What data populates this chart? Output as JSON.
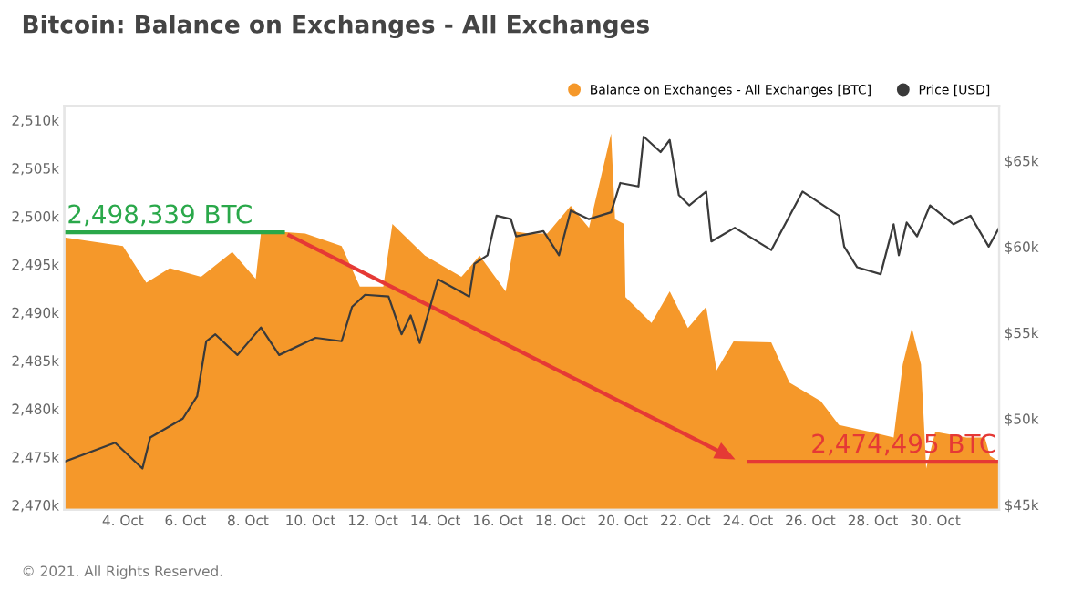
{
  "chart_data": {
    "type": "area",
    "title": "Bitcoin: Balance on Exchanges - All Exchanges",
    "legend": "top right",
    "series": [
      {
        "name": "Balance on Exchanges - All Exchanges [BTC]",
        "color": "#f5982a",
        "x": [
          "2021-10-02T03:00",
          "2021-10-04T00:00",
          "2021-10-04T18:00",
          "2021-10-05T12:00",
          "2021-10-06T12:00",
          "2021-10-07T12:00",
          "2021-10-08T06:00",
          "2021-10-08T10:00",
          "2021-10-09T00:00",
          "2021-10-09T20:00",
          "2021-10-11T00:00",
          "2021-10-11T14:00",
          "2021-10-12T08:00",
          "2021-10-12T15:00",
          "2021-10-13T16:00",
          "2021-10-14T20:00",
          "2021-10-15T10:00",
          "2021-10-16T06:00",
          "2021-10-16T14:00",
          "2021-10-17T00:00",
          "2021-10-17T14:00",
          "2021-10-18T08:00",
          "2021-10-18T22:00",
          "2021-10-19T15:00",
          "2021-10-19T18:00",
          "2021-10-20T01:00",
          "2021-10-20T02:00",
          "2021-10-20T22:00",
          "2021-10-21T12:00",
          "2021-10-22T02:00",
          "2021-10-22T16:00",
          "2021-10-23T00:00",
          "2021-10-23T13:00",
          "2021-10-24T18:00",
          "2021-10-25T08:00",
          "2021-10-26T08:00",
          "2021-10-26T22:00",
          "2021-10-27T22:00",
          "2021-10-28T16:00",
          "2021-10-28T23:00",
          "2021-10-29T06:00",
          "2021-10-29T13:00",
          "2021-10-29T17:00",
          "2021-10-30T00:00",
          "2021-10-31T00:00",
          "2021-10-31T14:00",
          "2021-10-31T18:00",
          "2021-11-01T01:00"
        ],
        "values": [
          2497.8,
          2496.9,
          2493.1,
          2494.6,
          2493.7,
          2496.3,
          2493.5,
          2498.2,
          2498.4,
          2498.2,
          2496.9,
          2492.7,
          2492.7,
          2499.2,
          2495.9,
          2493.7,
          2495.9,
          2492.2,
          2498.4,
          2498.2,
          2498.2,
          2501.1,
          2498.8,
          2508.6,
          2499.7,
          2499.2,
          2491.6,
          2488.9,
          2492.2,
          2488.4,
          2490.6,
          2484.0,
          2487.0,
          2486.9,
          2482.7,
          2480.8,
          2478.3,
          2477.6,
          2477.0,
          2484.6,
          2488.4,
          2484.6,
          2473.8,
          2477.6,
          2477.0,
          2477.0,
          2475.1,
          2474.5
        ]
      },
      {
        "name": "Price [USD]",
        "type": "line",
        "axis": "y2",
        "color": "#3a3a3a",
        "x": [
          "2021-10-02T03:00",
          "2021-10-03T18:00",
          "2021-10-04T15:00",
          "2021-10-04T21:00",
          "2021-10-05T22:00",
          "2021-10-06T09:00",
          "2021-10-06T16:00",
          "2021-10-06T23:00",
          "2021-10-07T16:00",
          "2021-10-08T10:00",
          "2021-10-09T00:00",
          "2021-10-10T04:00",
          "2021-10-11T00:00",
          "2021-10-11T08:00",
          "2021-10-11T18:00",
          "2021-10-12T12:00",
          "2021-10-12T22:00",
          "2021-10-13T05:00",
          "2021-10-13T12:00",
          "2021-10-14T02:00",
          "2021-10-15T02:00",
          "2021-10-15T06:00",
          "2021-10-15T16:00",
          "2021-10-15T23:00",
          "2021-10-16T10:00",
          "2021-10-16T14:00",
          "2021-10-17T11:00",
          "2021-10-17T23:00",
          "2021-10-18T08:00",
          "2021-10-18T22:00",
          "2021-10-19T15:00",
          "2021-10-19T22:00",
          "2021-10-20T12:00",
          "2021-10-20T16:00",
          "2021-10-21T05:00",
          "2021-10-21T12:00",
          "2021-10-21T19:00",
          "2021-10-22T03:00",
          "2021-10-22T16:00",
          "2021-10-22T20:00",
          "2021-10-23T14:00",
          "2021-10-24T18:00",
          "2021-10-25T18:00",
          "2021-10-26T22:00",
          "2021-10-27T02:00",
          "2021-10-27T12:00",
          "2021-10-28T06:00",
          "2021-10-28T16:00",
          "2021-10-28T20:00",
          "2021-10-29T02:00",
          "2021-10-29T10:00",
          "2021-10-29T20:00",
          "2021-10-30T14:00",
          "2021-10-31T03:00",
          "2021-10-31T17:00",
          "2021-11-01T01:00"
        ],
        "values": [
          47.5,
          48.6,
          47.1,
          48.9,
          50.0,
          51.3,
          54.5,
          54.9,
          53.7,
          55.3,
          53.7,
          54.7,
          54.5,
          56.5,
          57.2,
          57.1,
          54.9,
          56.0,
          54.4,
          58.1,
          57.1,
          59.0,
          59.5,
          61.8,
          61.6,
          60.6,
          60.9,
          59.5,
          62.1,
          61.6,
          62.0,
          63.7,
          63.5,
          66.4,
          65.5,
          66.2,
          63.0,
          62.4,
          63.2,
          60.3,
          61.1,
          59.8,
          63.2,
          61.8,
          60.0,
          58.8,
          58.4,
          61.3,
          59.5,
          61.4,
          60.6,
          62.4,
          61.3,
          61.8,
          60.0,
          61.1
        ]
      }
    ],
    "xlim": [
      "2021-10-02T03:00",
      "2021-11-01T01:00"
    ],
    "xticks": [
      {
        "value": "2021-10-04",
        "label": "4. Oct"
      },
      {
        "value": "2021-10-06",
        "label": "6. Oct"
      },
      {
        "value": "2021-10-08",
        "label": "8. Oct"
      },
      {
        "value": "2021-10-10",
        "label": "10. Oct"
      },
      {
        "value": "2021-10-12",
        "label": "12. Oct"
      },
      {
        "value": "2021-10-14",
        "label": "14. Oct"
      },
      {
        "value": "2021-10-16",
        "label": "16. Oct"
      },
      {
        "value": "2021-10-18",
        "label": "18. Oct"
      },
      {
        "value": "2021-10-20",
        "label": "20. Oct"
      },
      {
        "value": "2021-10-22",
        "label": "22. Oct"
      },
      {
        "value": "2021-10-24",
        "label": "24. Oct"
      },
      {
        "value": "2021-10-26",
        "label": "26. Oct"
      },
      {
        "value": "2021-10-28",
        "label": "28. Oct"
      },
      {
        "value": "2021-10-30",
        "label": "30. Oct"
      }
    ],
    "ylim": [
      2469.5,
      2511.5
    ],
    "yticks": [
      {
        "value": 2470,
        "label": "2,470k"
      },
      {
        "value": 2475,
        "label": "2,475k"
      },
      {
        "value": 2480,
        "label": "2,480k"
      },
      {
        "value": 2485,
        "label": "2,485k"
      },
      {
        "value": 2490,
        "label": "2,490k"
      },
      {
        "value": 2495,
        "label": "2,495k"
      },
      {
        "value": 2500,
        "label": "2,500k"
      },
      {
        "value": 2505,
        "label": "2,505k"
      },
      {
        "value": 2510,
        "label": "2,510k"
      }
    ],
    "y2lim": [
      44.7,
      68.2
    ],
    "y2ticks": [
      {
        "value": 45,
        "label": "$45k"
      },
      {
        "value": 50,
        "label": "$50k"
      },
      {
        "value": 55,
        "label": "$55k"
      },
      {
        "value": 60,
        "label": "$60k"
      },
      {
        "value": 65,
        "label": "$65k"
      }
    ],
    "grid": false,
    "annotations": [
      {
        "text": "2,498,339 BTC",
        "x": "2021-10-02T03:00",
        "y": 2498.339
      },
      {
        "text": "2,474,495 BTC",
        "x": "2021-11-01T01:00",
        "y": 2474.495
      },
      "© 2021. All Rights Reserved."
    ]
  }
}
